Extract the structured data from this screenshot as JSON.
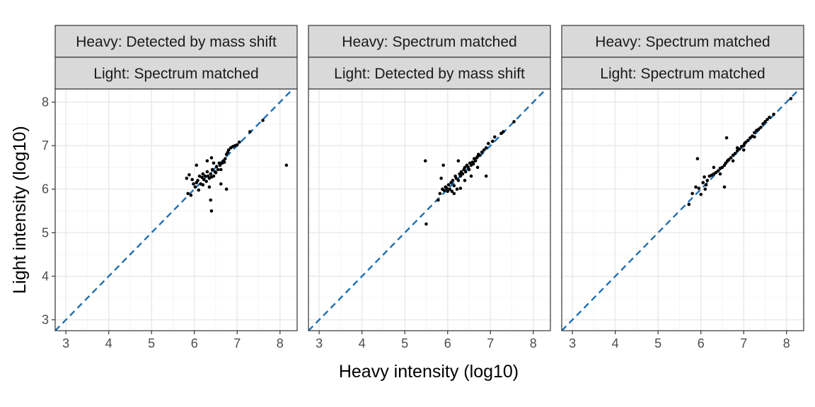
{
  "chart_data": {
    "type": "scatter",
    "xlabel": "Heavy intensity (log10)",
    "ylabel": "Light intensity (log10)",
    "xlim": [
      2.75,
      8.4
    ],
    "ylim": [
      2.75,
      8.3
    ],
    "xticks": [
      3,
      4,
      5,
      6,
      7,
      8
    ],
    "yticks": [
      3,
      4,
      5,
      6,
      7,
      8
    ],
    "grid": true,
    "reference_line": "y = x",
    "colors": {
      "points": "#000000",
      "reference_line": "#1f6fb4",
      "strip": "#d9d9d9"
    },
    "panels": [
      {
        "strip_top": "Heavy: Detected by mass shift",
        "strip_bottom": "Light: Spectrum matched",
        "points": [
          [
            5.82,
            6.25
          ],
          [
            5.85,
            5.9
          ],
          [
            5.88,
            6.33
          ],
          [
            5.92,
            5.86
          ],
          [
            5.95,
            6.22
          ],
          [
            5.98,
            6.12
          ],
          [
            6.02,
            6.05
          ],
          [
            6.05,
            6.15
          ],
          [
            6.05,
            6.55
          ],
          [
            6.08,
            6.2
          ],
          [
            6.1,
            5.98
          ],
          [
            6.12,
            6.3
          ],
          [
            6.15,
            6.12
          ],
          [
            6.18,
            6.27
          ],
          [
            6.2,
            6.35
          ],
          [
            6.22,
            6.22
          ],
          [
            6.25,
            6.3
          ],
          [
            6.28,
            6.18
          ],
          [
            6.3,
            6.4
          ],
          [
            6.32,
            6.3
          ],
          [
            6.35,
            6.25
          ],
          [
            6.38,
            6.35
          ],
          [
            6.4,
            6.72
          ],
          [
            6.4,
            6.28
          ],
          [
            6.42,
            6.45
          ],
          [
            6.45,
            6.3
          ],
          [
            6.48,
            6.4
          ],
          [
            6.5,
            6.38
          ],
          [
            6.52,
            6.52
          ],
          [
            6.55,
            6.45
          ],
          [
            6.58,
            6.6
          ],
          [
            6.6,
            6.55
          ],
          [
            6.62,
            6.45
          ],
          [
            6.65,
            6.6
          ],
          [
            6.68,
            6.65
          ],
          [
            6.7,
            6.62
          ],
          [
            6.72,
            6.7
          ],
          [
            6.75,
            6.8
          ],
          [
            6.78,
            6.85
          ],
          [
            6.8,
            6.9
          ],
          [
            6.85,
            6.95
          ],
          [
            6.9,
            6.98
          ],
          [
            6.95,
            7.0
          ],
          [
            7.0,
            7.02
          ],
          [
            7.05,
            7.08
          ],
          [
            7.3,
            7.32
          ],
          [
            7.6,
            7.58
          ],
          [
            8.15,
            6.55
          ],
          [
            6.4,
            5.5
          ],
          [
            6.38,
            5.75
          ],
          [
            6.35,
            6.05
          ],
          [
            6.62,
            6.12
          ],
          [
            6.75,
            6.0
          ],
          [
            6.3,
            6.65
          ],
          [
            6.45,
            6.6
          ],
          [
            6.2,
            6.1
          ]
        ]
      },
      {
        "strip_top": "Heavy: Spectrum matched",
        "strip_bottom": "Light: Detected by mass shift",
        "points": [
          [
            5.48,
            6.65
          ],
          [
            5.5,
            5.2
          ],
          [
            5.78,
            5.75
          ],
          [
            5.82,
            5.9
          ],
          [
            5.85,
            6.25
          ],
          [
            5.88,
            6.0
          ],
          [
            5.9,
            6.55
          ],
          [
            5.92,
            5.97
          ],
          [
            5.95,
            6.05
          ],
          [
            5.98,
            6.02
          ],
          [
            6.0,
            5.95
          ],
          [
            6.02,
            6.1
          ],
          [
            6.05,
            6.0
          ],
          [
            6.08,
            6.15
          ],
          [
            6.1,
            5.95
          ],
          [
            6.12,
            6.2
          ],
          [
            6.15,
            6.08
          ],
          [
            6.18,
            6.3
          ],
          [
            6.2,
            6.25
          ],
          [
            6.22,
            6.0
          ],
          [
            6.25,
            6.2
          ],
          [
            6.28,
            6.35
          ],
          [
            6.3,
            6.3
          ],
          [
            6.32,
            6.4
          ],
          [
            6.35,
            6.35
          ],
          [
            6.38,
            6.45
          ],
          [
            6.4,
            6.5
          ],
          [
            6.42,
            6.4
          ],
          [
            6.45,
            6.55
          ],
          [
            6.48,
            6.5
          ],
          [
            6.5,
            6.45
          ],
          [
            6.52,
            6.6
          ],
          [
            6.55,
            6.55
          ],
          [
            6.58,
            6.62
          ],
          [
            6.6,
            6.58
          ],
          [
            6.62,
            6.7
          ],
          [
            6.65,
            6.65
          ],
          [
            6.68,
            6.72
          ],
          [
            6.7,
            6.75
          ],
          [
            6.72,
            6.8
          ],
          [
            6.75,
            6.78
          ],
          [
            6.8,
            6.85
          ],
          [
            6.85,
            6.9
          ],
          [
            6.9,
            6.95
          ],
          [
            6.95,
            7.05
          ],
          [
            7.05,
            7.1
          ],
          [
            7.1,
            7.2
          ],
          [
            7.25,
            7.28
          ],
          [
            7.3,
            7.32
          ],
          [
            7.55,
            7.55
          ],
          [
            6.9,
            6.3
          ],
          [
            6.25,
            6.65
          ],
          [
            6.4,
            6.2
          ],
          [
            6.55,
            6.3
          ],
          [
            6.3,
            6.02
          ],
          [
            6.7,
            6.5
          ],
          [
            6.15,
            5.9
          ]
        ]
      },
      {
        "strip_top": "Heavy: Spectrum matched",
        "strip_bottom": "Light: Spectrum matched",
        "points": [
          [
            5.72,
            5.65
          ],
          [
            5.8,
            5.9
          ],
          [
            5.88,
            6.05
          ],
          [
            5.92,
            6.7
          ],
          [
            5.95,
            6.02
          ],
          [
            6.0,
            5.88
          ],
          [
            6.05,
            6.15
          ],
          [
            6.08,
            6.28
          ],
          [
            6.12,
            6.1
          ],
          [
            6.15,
            6.2
          ],
          [
            6.2,
            6.3
          ],
          [
            6.25,
            6.32
          ],
          [
            6.3,
            6.35
          ],
          [
            6.35,
            6.38
          ],
          [
            6.4,
            6.42
          ],
          [
            6.45,
            6.48
          ],
          [
            6.5,
            6.5
          ],
          [
            6.55,
            6.55
          ],
          [
            6.58,
            6.6
          ],
          [
            6.62,
            6.65
          ],
          [
            6.65,
            6.68
          ],
          [
            6.7,
            6.72
          ],
          [
            6.75,
            6.78
          ],
          [
            6.8,
            6.82
          ],
          [
            6.85,
            6.88
          ],
          [
            6.9,
            6.92
          ],
          [
            6.95,
            6.98
          ],
          [
            7.0,
            7.0
          ],
          [
            7.02,
            7.05
          ],
          [
            7.05,
            7.08
          ],
          [
            7.1,
            7.12
          ],
          [
            7.15,
            7.18
          ],
          [
            7.2,
            7.22
          ],
          [
            7.25,
            7.3
          ],
          [
            7.3,
            7.35
          ],
          [
            7.35,
            7.38
          ],
          [
            7.4,
            7.42
          ],
          [
            7.45,
            7.5
          ],
          [
            7.5,
            7.55
          ],
          [
            7.55,
            7.6
          ],
          [
            7.6,
            7.65
          ],
          [
            7.7,
            7.72
          ],
          [
            8.1,
            8.08
          ],
          [
            6.6,
            7.18
          ],
          [
            6.55,
            6.05
          ],
          [
            6.3,
            6.5
          ],
          [
            6.1,
            6.0
          ],
          [
            6.45,
            6.35
          ],
          [
            7.0,
            6.9
          ],
          [
            6.75,
            6.65
          ],
          [
            6.85,
            6.95
          ],
          [
            7.25,
            7.2
          ]
        ]
      }
    ]
  }
}
